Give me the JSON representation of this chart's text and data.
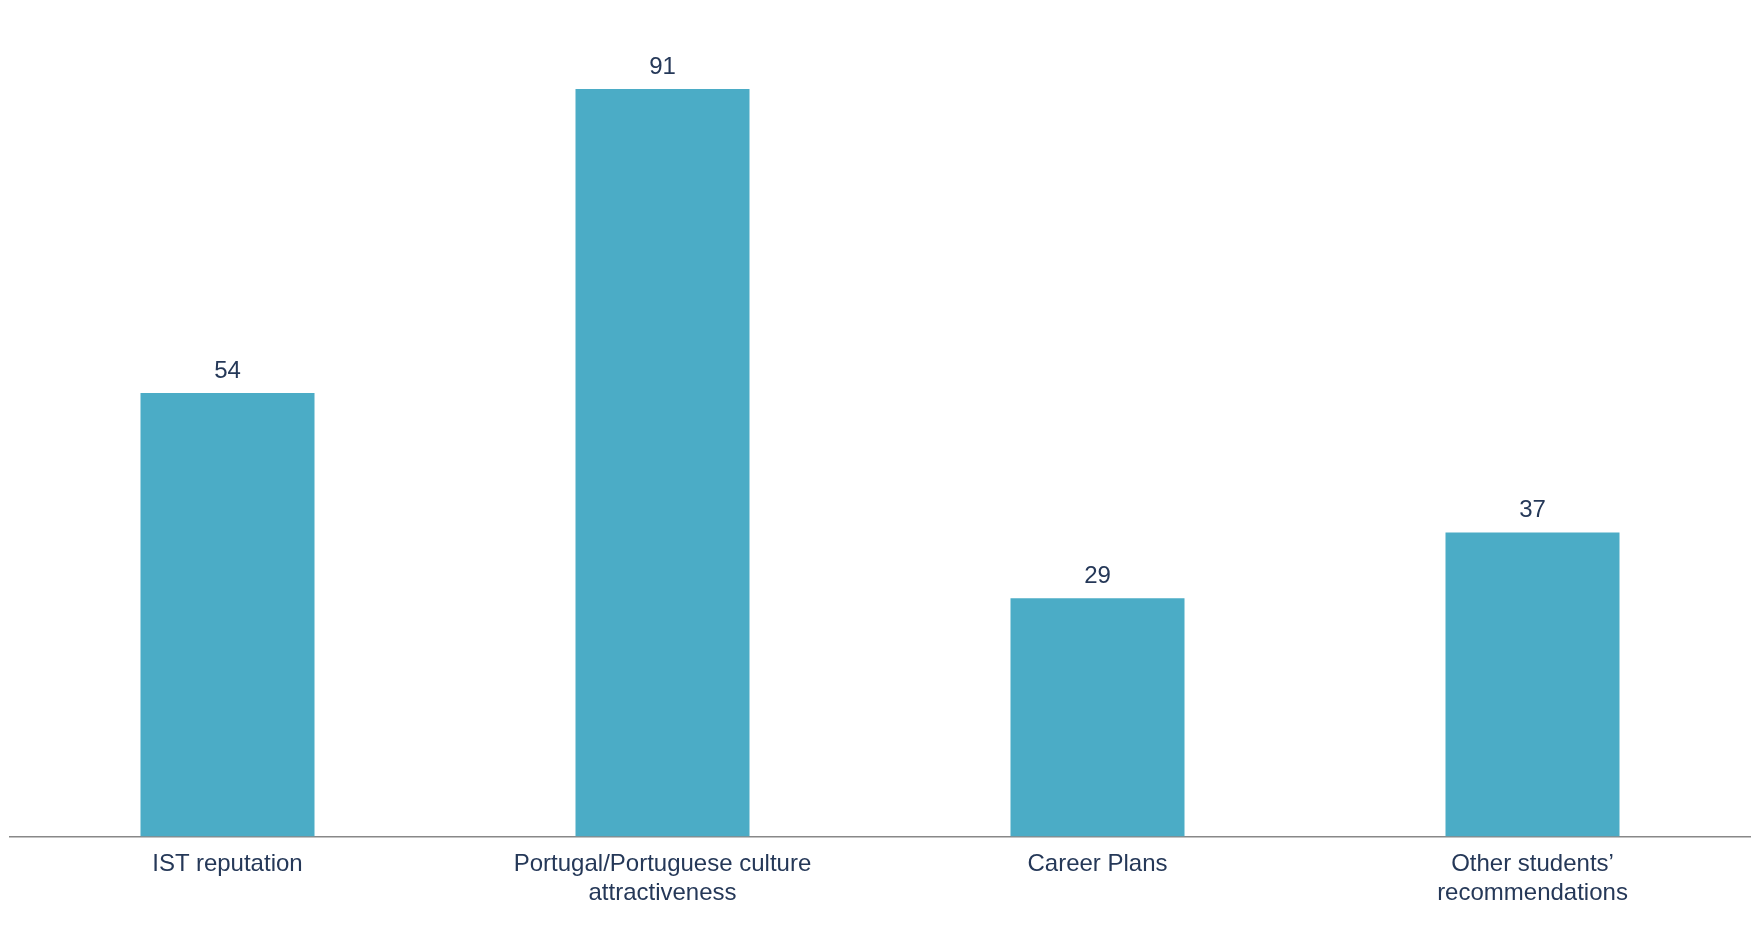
{
  "chart_data": {
    "type": "bar",
    "categories": [
      "IST reputation",
      "Portugal/Portuguese culture attractiveness",
      "Career Plans",
      "Other students’ recommendations"
    ],
    "values": [
      54,
      91,
      29,
      37
    ],
    "color": "#4bacc6",
    "data_labels": true,
    "grid": false,
    "legend": false
  }
}
